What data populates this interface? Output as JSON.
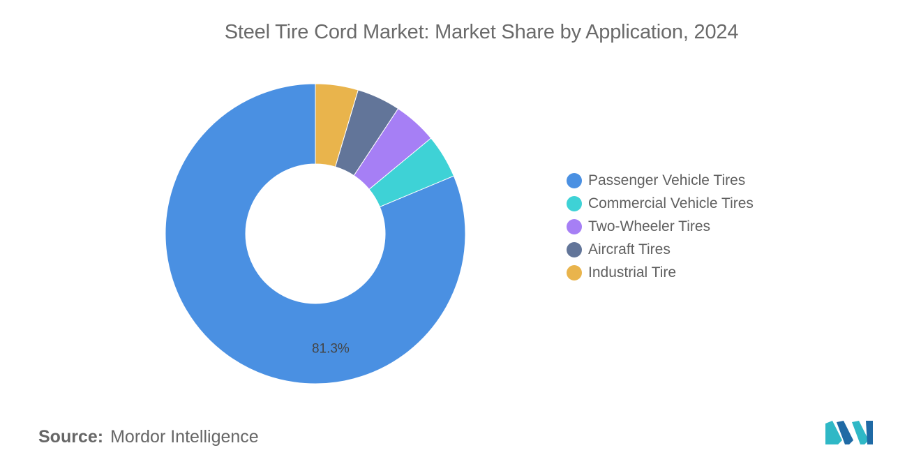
{
  "title": "Steel Tire Cord Market: Market Share by Application, 2024",
  "source": {
    "label": "Source:",
    "value": "Mordor Intelligence"
  },
  "logo": {
    "icon": "mordor-intelligence-logo",
    "colors": [
      "#2fb8c6",
      "#1f6aa5"
    ]
  },
  "chart_data": {
    "type": "pie",
    "variant": "donut",
    "title": "Steel Tire Cord Market: Market Share by Application, 2024",
    "categories": [
      "Passenger Vehicle Tires",
      "Commercial Vehicle Tires",
      "Two-Wheeler Tires",
      "Aircraft Tires",
      "Industrial Tire"
    ],
    "values": [
      81.3,
      4.7,
      4.7,
      4.7,
      4.6
    ],
    "colors": [
      "#4a90e2",
      "#3ed2d6",
      "#a67ff5",
      "#627599",
      "#e9b44c"
    ],
    "data_labels": [
      "81.3%",
      "",
      "",
      "",
      ""
    ],
    "legend_position": "right",
    "start": "top",
    "direction": "counterclockwise"
  }
}
